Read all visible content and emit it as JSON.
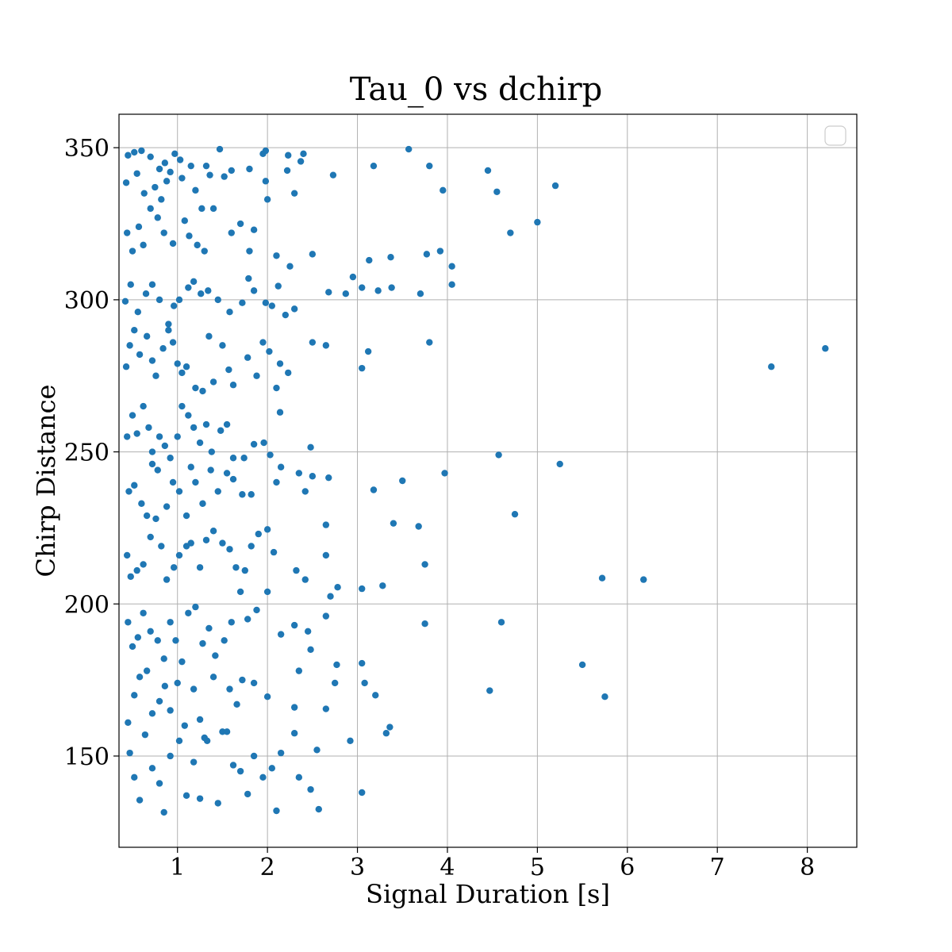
{
  "chart_data": {
    "type": "scatter",
    "title": "Tau_0 vs dchirp",
    "xlabel": "Signal Duration [s]",
    "ylabel": "Chirp Distance",
    "xlim": [
      0.35,
      8.55
    ],
    "ylim": [
      120,
      361
    ],
    "xticks": [
      1,
      2,
      3,
      4,
      5,
      6,
      7,
      8
    ],
    "yticks": [
      150,
      200,
      250,
      300,
      350
    ],
    "xtick_labels": [
      "1",
      "2",
      "3",
      "4",
      "5",
      "6",
      "7",
      "8"
    ],
    "ytick_labels": [
      "150",
      "200",
      "250",
      "300",
      "350"
    ],
    "grid": true,
    "legend": {
      "placement": "top-right",
      "entries": []
    },
    "marker_color": "#1f77b4",
    "series": [
      {
        "points": [
          [
            0.45,
            347.5
          ],
          [
            0.52,
            348.5
          ],
          [
            0.6,
            349
          ],
          [
            0.7,
            347
          ],
          [
            0.8,
            343
          ],
          [
            0.86,
            345
          ],
          [
            0.97,
            348
          ],
          [
            1.03,
            346
          ],
          [
            1.32,
            344
          ],
          [
            1.47,
            349.5
          ],
          [
            1.95,
            348
          ],
          [
            2.23,
            347.5
          ],
          [
            2.4,
            348
          ],
          [
            3.57,
            349.5
          ],
          [
            3.8,
            344
          ],
          [
            4.45,
            342.5
          ],
          [
            1.98,
            349
          ],
          [
            0.43,
            338.5
          ],
          [
            0.55,
            341.5
          ],
          [
            0.63,
            335
          ],
          [
            0.75,
            337
          ],
          [
            0.82,
            333
          ],
          [
            0.88,
            339
          ],
          [
            0.92,
            342
          ],
          [
            1.05,
            340
          ],
          [
            1.15,
            344
          ],
          [
            1.2,
            336
          ],
          [
            1.27,
            330
          ],
          [
            1.36,
            341
          ],
          [
            1.52,
            340.5
          ],
          [
            1.6,
            342.5
          ],
          [
            1.8,
            343
          ],
          [
            1.98,
            339
          ],
          [
            2.0,
            333
          ],
          [
            2.22,
            342.5
          ],
          [
            2.3,
            335
          ],
          [
            2.37,
            345.5
          ],
          [
            2.73,
            341
          ],
          [
            3.18,
            344
          ],
          [
            3.95,
            336
          ],
          [
            4.55,
            335.5
          ],
          [
            5.2,
            337.5
          ],
          [
            0.44,
            322
          ],
          [
            0.5,
            316
          ],
          [
            0.57,
            324
          ],
          [
            0.62,
            318
          ],
          [
            0.7,
            330
          ],
          [
            0.78,
            327
          ],
          [
            0.85,
            322
          ],
          [
            0.95,
            318.5
          ],
          [
            1.08,
            326
          ],
          [
            1.13,
            321
          ],
          [
            1.22,
            318
          ],
          [
            1.3,
            316
          ],
          [
            1.4,
            330
          ],
          [
            1.6,
            322
          ],
          [
            1.7,
            325
          ],
          [
            1.8,
            316
          ],
          [
            1.85,
            323
          ],
          [
            2.1,
            314.5
          ],
          [
            2.25,
            311
          ],
          [
            2.5,
            315
          ],
          [
            3.13,
            313
          ],
          [
            3.37,
            314
          ],
          [
            3.77,
            315
          ],
          [
            3.92,
            316
          ],
          [
            4.05,
            311
          ],
          [
            4.7,
            322
          ],
          [
            5.0,
            325.5
          ],
          [
            0.42,
            299.5
          ],
          [
            0.48,
            305
          ],
          [
            0.56,
            296
          ],
          [
            0.65,
            302
          ],
          [
            0.72,
            305
          ],
          [
            0.8,
            300
          ],
          [
            0.9,
            292
          ],
          [
            0.96,
            298
          ],
          [
            1.02,
            300
          ],
          [
            1.12,
            304
          ],
          [
            1.18,
            306
          ],
          [
            1.26,
            302
          ],
          [
            1.34,
            303
          ],
          [
            1.45,
            300
          ],
          [
            1.58,
            296
          ],
          [
            1.72,
            299
          ],
          [
            1.79,
            307
          ],
          [
            1.85,
            303
          ],
          [
            1.98,
            299
          ],
          [
            2.05,
            298
          ],
          [
            2.12,
            304.5
          ],
          [
            2.2,
            295
          ],
          [
            2.3,
            297
          ],
          [
            2.68,
            302.5
          ],
          [
            2.87,
            302
          ],
          [
            2.95,
            307.5
          ],
          [
            3.05,
            304
          ],
          [
            3.23,
            303
          ],
          [
            3.38,
            304
          ],
          [
            3.7,
            302
          ],
          [
            4.05,
            305
          ],
          [
            0.43,
            278
          ],
          [
            0.47,
            285
          ],
          [
            0.52,
            290
          ],
          [
            0.58,
            282
          ],
          [
            0.66,
            288
          ],
          [
            0.72,
            280
          ],
          [
            0.76,
            275
          ],
          [
            0.84,
            284
          ],
          [
            0.9,
            290
          ],
          [
            0.95,
            286
          ],
          [
            1.0,
            279
          ],
          [
            1.05,
            276
          ],
          [
            1.1,
            278
          ],
          [
            1.2,
            271
          ],
          [
            1.28,
            270
          ],
          [
            1.35,
            288
          ],
          [
            1.4,
            273
          ],
          [
            1.5,
            285
          ],
          [
            1.57,
            277
          ],
          [
            1.62,
            272
          ],
          [
            1.78,
            281
          ],
          [
            1.88,
            275
          ],
          [
            1.95,
            286
          ],
          [
            2.02,
            283
          ],
          [
            2.1,
            271
          ],
          [
            2.14,
            279
          ],
          [
            2.23,
            276
          ],
          [
            2.5,
            286
          ],
          [
            2.65,
            285
          ],
          [
            3.05,
            277.5
          ],
          [
            3.12,
            283
          ],
          [
            3.8,
            286
          ],
          [
            7.6,
            278
          ],
          [
            8.2,
            284
          ],
          [
            0.44,
            255
          ],
          [
            0.5,
            262
          ],
          [
            0.55,
            256
          ],
          [
            0.62,
            265
          ],
          [
            0.68,
            258
          ],
          [
            0.72,
            250
          ],
          [
            0.8,
            255
          ],
          [
            0.86,
            252
          ],
          [
            0.92,
            248
          ],
          [
            1.0,
            255
          ],
          [
            1.05,
            265
          ],
          [
            1.12,
            262
          ],
          [
            1.18,
            258
          ],
          [
            1.25,
            253
          ],
          [
            1.32,
            259
          ],
          [
            1.38,
            250
          ],
          [
            1.48,
            257
          ],
          [
            1.55,
            259
          ],
          [
            1.62,
            248
          ],
          [
            1.74,
            248
          ],
          [
            1.85,
            252.5
          ],
          [
            1.96,
            253
          ],
          [
            2.03,
            249
          ],
          [
            2.14,
            263
          ],
          [
            2.48,
            251.5
          ],
          [
            0.46,
            237
          ],
          [
            0.52,
            239
          ],
          [
            0.6,
            233
          ],
          [
            0.66,
            229
          ],
          [
            0.72,
            246
          ],
          [
            0.78,
            244
          ],
          [
            0.88,
            232
          ],
          [
            0.95,
            240
          ],
          [
            1.02,
            237
          ],
          [
            1.1,
            229
          ],
          [
            1.15,
            245
          ],
          [
            1.2,
            240
          ],
          [
            1.28,
            233
          ],
          [
            1.37,
            244
          ],
          [
            1.45,
            237
          ],
          [
            1.55,
            243
          ],
          [
            1.62,
            241
          ],
          [
            1.72,
            236
          ],
          [
            1.82,
            236
          ],
          [
            2.1,
            240
          ],
          [
            2.15,
            245
          ],
          [
            2.35,
            243
          ],
          [
            2.42,
            237
          ],
          [
            2.5,
            242
          ],
          [
            2.68,
            241.5
          ],
          [
            3.18,
            237.5
          ],
          [
            3.5,
            240.5
          ],
          [
            3.97,
            243
          ],
          [
            4.57,
            249
          ],
          [
            5.25,
            246
          ],
          [
            0.44,
            216
          ],
          [
            0.48,
            209
          ],
          [
            0.55,
            211
          ],
          [
            0.62,
            213
          ],
          [
            0.7,
            222
          ],
          [
            0.76,
            228
          ],
          [
            0.82,
            219
          ],
          [
            0.88,
            208
          ],
          [
            0.96,
            212
          ],
          [
            1.02,
            216
          ],
          [
            1.1,
            219
          ],
          [
            1.15,
            220
          ],
          [
            1.25,
            212
          ],
          [
            1.32,
            221
          ],
          [
            1.4,
            224
          ],
          [
            1.5,
            220
          ],
          [
            1.58,
            218
          ],
          [
            1.65,
            212
          ],
          [
            1.75,
            211
          ],
          [
            1.82,
            219
          ],
          [
            1.9,
            223
          ],
          [
            2.0,
            224.5
          ],
          [
            2.07,
            217
          ],
          [
            2.32,
            211
          ],
          [
            2.42,
            208
          ],
          [
            2.65,
            216
          ],
          [
            2.65,
            226
          ],
          [
            3.4,
            226.5
          ],
          [
            3.68,
            225.5
          ],
          [
            3.75,
            213
          ],
          [
            4.75,
            229.5
          ],
          [
            5.72,
            208.5
          ],
          [
            6.18,
            208
          ],
          [
            0.45,
            194
          ],
          [
            0.5,
            186
          ],
          [
            0.56,
            189
          ],
          [
            0.62,
            197
          ],
          [
            0.7,
            191
          ],
          [
            0.78,
            188
          ],
          [
            0.85,
            182
          ],
          [
            0.92,
            194
          ],
          [
            0.98,
            188
          ],
          [
            1.05,
            181
          ],
          [
            1.12,
            197
          ],
          [
            1.2,
            199
          ],
          [
            1.28,
            187
          ],
          [
            1.35,
            192
          ],
          [
            1.42,
            183
          ],
          [
            1.52,
            188
          ],
          [
            1.6,
            194
          ],
          [
            1.7,
            204
          ],
          [
            1.78,
            195
          ],
          [
            1.88,
            198
          ],
          [
            2.0,
            204
          ],
          [
            2.15,
            190
          ],
          [
            2.3,
            193
          ],
          [
            2.45,
            191
          ],
          [
            2.65,
            196
          ],
          [
            2.7,
            202.5
          ],
          [
            2.78,
            205.5
          ],
          [
            3.05,
            205
          ],
          [
            3.28,
            206
          ],
          [
            3.75,
            193.5
          ],
          [
            4.6,
            194
          ],
          [
            0.45,
            161
          ],
          [
            0.52,
            170
          ],
          [
            0.58,
            176
          ],
          [
            0.66,
            178
          ],
          [
            0.72,
            164
          ],
          [
            0.8,
            168
          ],
          [
            0.86,
            173
          ],
          [
            0.92,
            165
          ],
          [
            1.0,
            174
          ],
          [
            1.08,
            160
          ],
          [
            1.18,
            172
          ],
          [
            1.25,
            162
          ],
          [
            1.3,
            156
          ],
          [
            1.4,
            176
          ],
          [
            1.5,
            158
          ],
          [
            1.58,
            172
          ],
          [
            1.66,
            167
          ],
          [
            1.72,
            175
          ],
          [
            1.85,
            174
          ],
          [
            2.0,
            169.5
          ],
          [
            2.3,
            166
          ],
          [
            2.35,
            178
          ],
          [
            2.48,
            185
          ],
          [
            2.65,
            165.5
          ],
          [
            2.75,
            174
          ],
          [
            2.77,
            180
          ],
          [
            3.08,
            174
          ],
          [
            3.05,
            180.5
          ],
          [
            3.2,
            170
          ],
          [
            4.47,
            171.5
          ],
          [
            5.5,
            180
          ],
          [
            5.75,
            169.5
          ],
          [
            0.47,
            151
          ],
          [
            0.52,
            143
          ],
          [
            0.58,
            135.5
          ],
          [
            0.64,
            157
          ],
          [
            0.72,
            146
          ],
          [
            0.8,
            141
          ],
          [
            0.85,
            131.5
          ],
          [
            0.92,
            150
          ],
          [
            1.02,
            155
          ],
          [
            1.1,
            137
          ],
          [
            1.18,
            148
          ],
          [
            1.25,
            136
          ],
          [
            1.33,
            155
          ],
          [
            1.45,
            134.5
          ],
          [
            1.55,
            158
          ],
          [
            1.62,
            147
          ],
          [
            1.7,
            145
          ],
          [
            1.78,
            137.5
          ],
          [
            1.85,
            150
          ],
          [
            1.95,
            143
          ],
          [
            2.05,
            146
          ],
          [
            2.1,
            132
          ],
          [
            2.15,
            151
          ],
          [
            2.3,
            157.5
          ],
          [
            2.35,
            143
          ],
          [
            2.48,
            139
          ],
          [
            2.57,
            132.5
          ],
          [
            2.55,
            152
          ],
          [
            2.92,
            155
          ],
          [
            3.05,
            138
          ],
          [
            3.32,
            157.5
          ],
          [
            3.36,
            159.5
          ]
        ]
      }
    ]
  }
}
